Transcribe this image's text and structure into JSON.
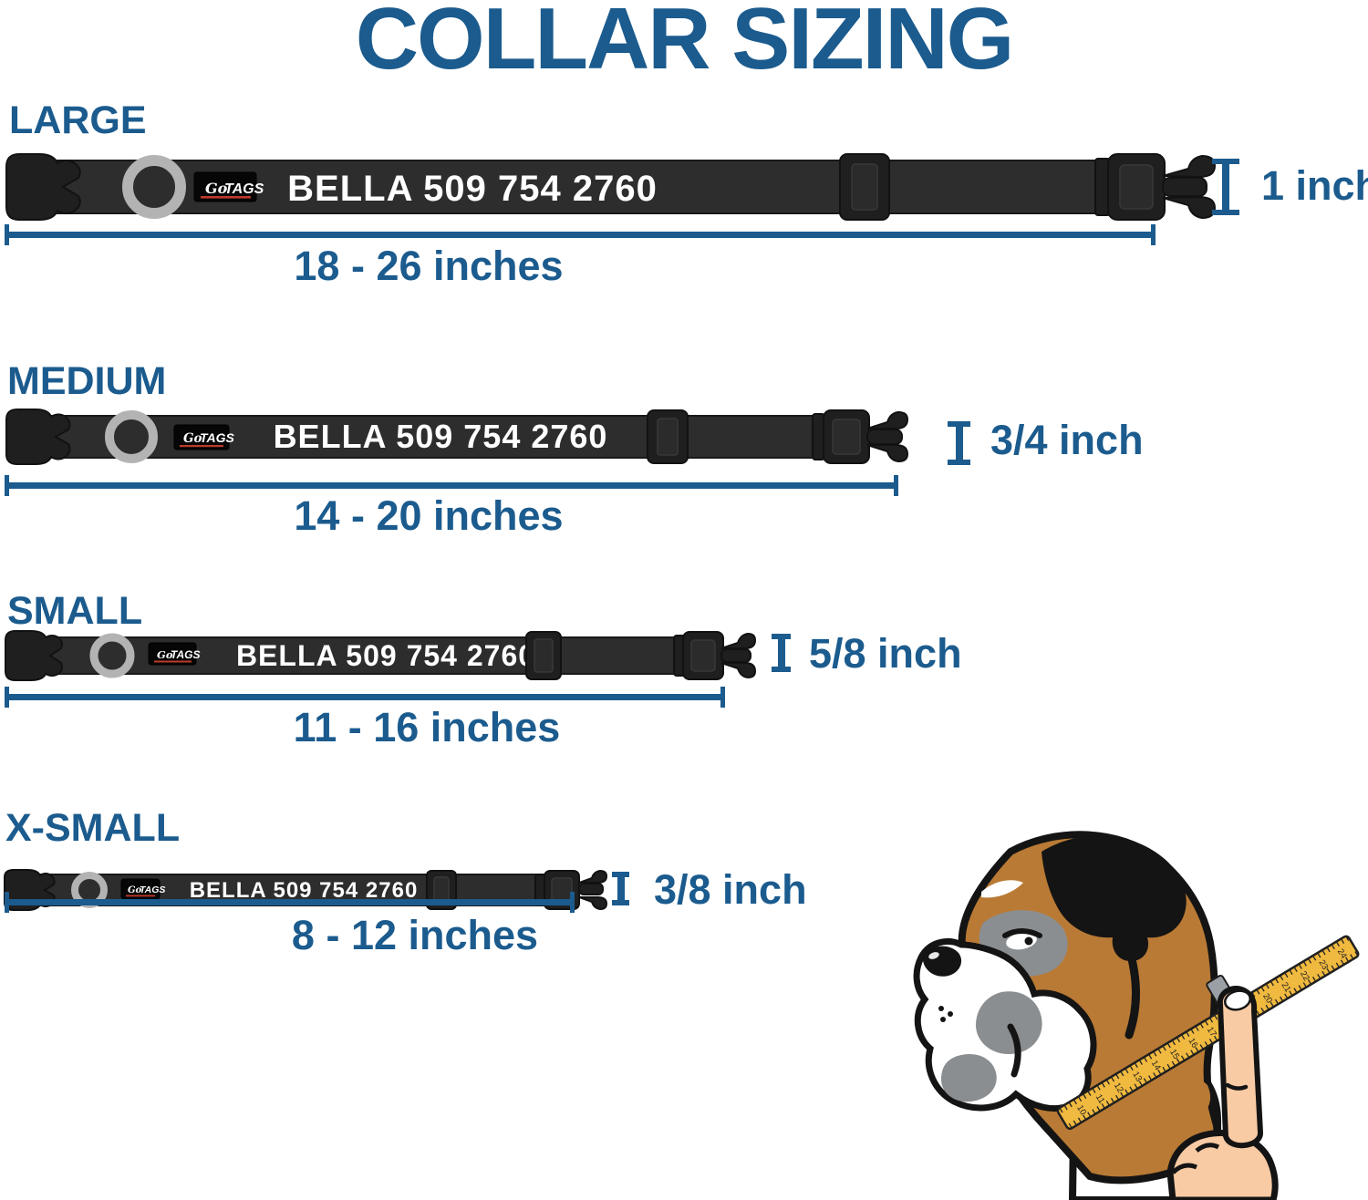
{
  "title": "COLLAR SIZING",
  "brand": {
    "script": "Go",
    "caps": "TAGS"
  },
  "collars": [
    {
      "size_label": "LARGE",
      "collar_text": "BELLA 509 754 2760",
      "width_label": "1 inch",
      "length_label": "18 - 26 inches"
    },
    {
      "size_label": "MEDIUM",
      "collar_text": "BELLA 509 754 2760",
      "width_label": "3/4 inch",
      "length_label": "14 - 20 inches"
    },
    {
      "size_label": "SMALL",
      "collar_text": "BELLA 509 754 2760",
      "width_label": "5/8 inch",
      "length_label": "11 - 16 inches"
    },
    {
      "size_label": "X-SMALL",
      "collar_text": "BELLA 509 754 2760",
      "width_label": "3/8 inch",
      "length_label": "8 - 12 inches"
    }
  ],
  "dog": {
    "tape_numbers": [
      "10",
      "11",
      "12",
      "13",
      "14",
      "15",
      "16",
      "17",
      "18",
      "19",
      "20",
      "21",
      "22",
      "23",
      "24"
    ]
  },
  "colors": {
    "accent_blue": "#1B5B8E",
    "collar_strap": "#2D2D2D",
    "hardware_black": "#1F1F1F",
    "dring_gray": "#B3B3B3",
    "patch_black": "#060606",
    "brand_red": "#C0392B",
    "collar_text_white": "#FFFFFF",
    "dog_brown": "#B97A35",
    "dog_gray": "#8B8E91",
    "tape_yellow": "#F0B93F",
    "hand_skin": "#F8CBA4"
  }
}
